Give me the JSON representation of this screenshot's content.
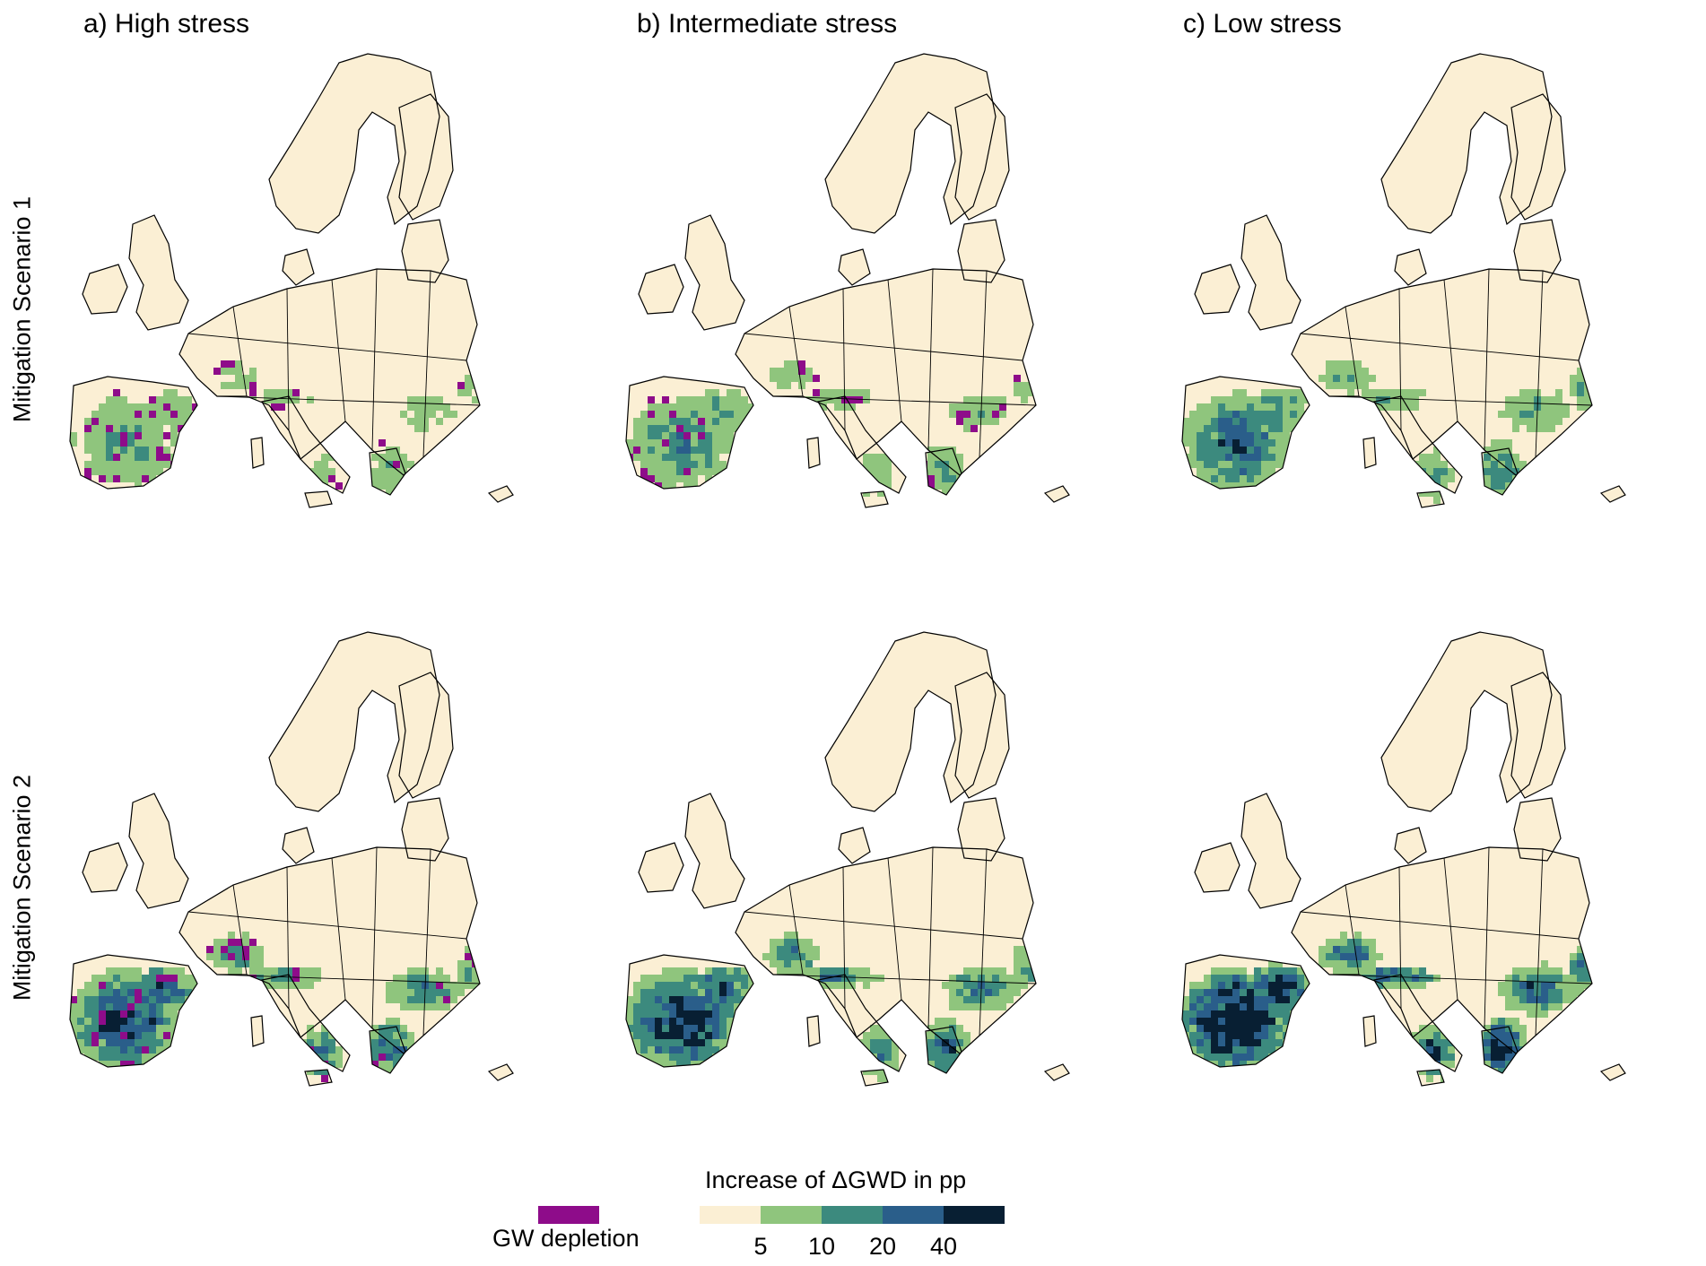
{
  "column_titles": [
    "a) High stress",
    "b) Intermediate stress",
    "c) Low stress"
  ],
  "row_titles": [
    "Mitigation Scenario 1",
    "Mitigation Scenario 2"
  ],
  "legend": {
    "title": "Increase of ΔGWD in pp",
    "tick_labels": [
      "5",
      "10",
      "20",
      "40"
    ],
    "classes": [
      "<5",
      "5-10",
      "10-20",
      "20-40",
      ">40"
    ],
    "class_colors": [
      "#fbefd4",
      "#8fc57d",
      "#3c8a7e",
      "#2a5e8a",
      "#081f33"
    ],
    "depletion_label": "GW depletion",
    "depletion_color": "#8e0c8a"
  },
  "base_color": "#fbefd4",
  "panels": [
    {
      "id": "a1",
      "row": 0,
      "col": 0,
      "depletion": true,
      "intensity": 0.35
    },
    {
      "id": "b1",
      "row": 0,
      "col": 1,
      "depletion": true,
      "intensity": 0.45
    },
    {
      "id": "c1",
      "row": 0,
      "col": 2,
      "depletion": false,
      "intensity": 0.65
    },
    {
      "id": "a2",
      "row": 1,
      "col": 0,
      "depletion": true,
      "intensity": 0.85
    },
    {
      "id": "b2",
      "row": 1,
      "col": 1,
      "depletion": false,
      "intensity": 0.95
    },
    {
      "id": "c2",
      "row": 1,
      "col": 2,
      "depletion": false,
      "intensity": 1.25
    }
  ]
}
